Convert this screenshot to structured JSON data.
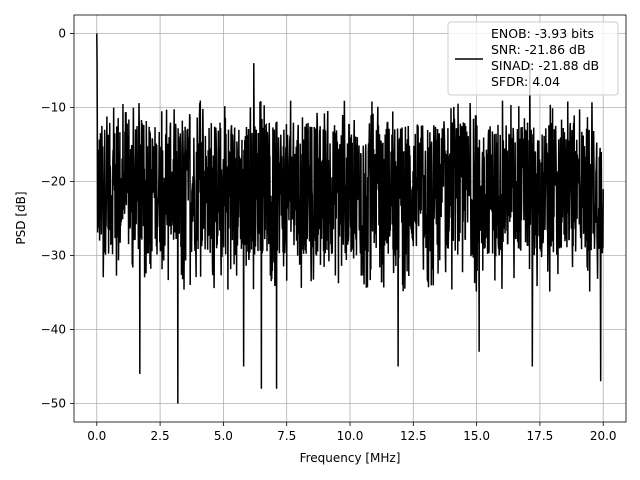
{
  "chart_data": {
    "type": "line",
    "title": "",
    "xlabel": "Frequency [MHz]",
    "ylabel": "PSD [dB]",
    "xlim": [
      -0.9,
      20.9
    ],
    "ylim": [
      -52.5,
      2.5
    ],
    "xticks": [
      0.0,
      2.5,
      5.0,
      7.5,
      10.0,
      12.5,
      15.0,
      17.5,
      20.0
    ],
    "xtick_labels": [
      "0.0",
      "2.5",
      "5.0",
      "7.5",
      "10.0",
      "12.5",
      "15.0",
      "17.5",
      "20.0"
    ],
    "yticks": [
      0,
      -10,
      -20,
      -30,
      -40,
      -50
    ],
    "ytick_labels": [
      "0",
      "−10",
      "−20",
      "−30",
      "−40",
      "−50"
    ],
    "grid": true,
    "legend_position": "top-right",
    "line_color": "#000000",
    "legend": {
      "lines": [
        "ENOB: -3.93 bits",
        "SNR: -21.86 dB",
        "SINAD: -21.88 dB",
        "SFDR: 4.04"
      ]
    },
    "series": [
      {
        "x_start": 0.0,
        "x_end": 20.0,
        "typical_range": [
          -30,
          -10
        ],
        "peak": {
          "x": 0.0,
          "y": 0
        },
        "notable_dips": [
          {
            "x": 1.7,
            "y": -46
          },
          {
            "x": 3.2,
            "y": -50
          },
          {
            "x": 5.8,
            "y": -45
          },
          {
            "x": 6.5,
            "y": -48
          },
          {
            "x": 7.1,
            "y": -48
          },
          {
            "x": 11.9,
            "y": -45
          },
          {
            "x": 15.1,
            "y": -43
          },
          {
            "x": 17.2,
            "y": -45
          },
          {
            "x": 19.9,
            "y": -47
          }
        ],
        "notable_peaks": [
          {
            "x": 6.2,
            "y": -4
          },
          {
            "x": 17.1,
            "y": -4
          }
        ]
      }
    ]
  }
}
